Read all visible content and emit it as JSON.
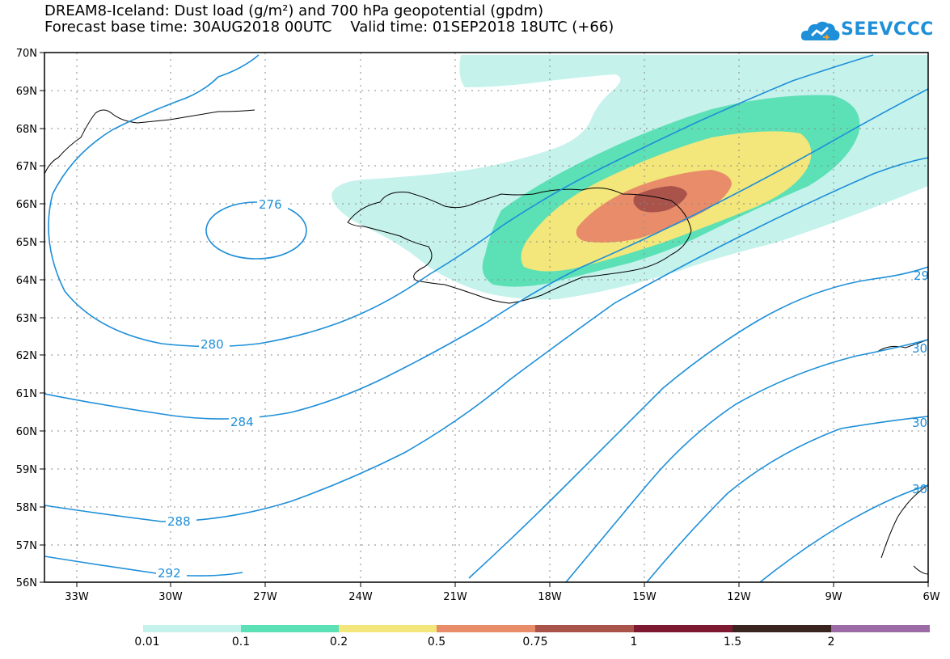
{
  "title": {
    "line1": "DREAM8-Iceland: Dust load (g/m²) and 700 hPa geopotential (gpdm)",
    "line2": "Forecast base time: 30AUG2018 00UTC    Valid time: 01SEP2018 18UTC (+66)"
  },
  "logo": {
    "text": "SEEVCCC",
    "icon": "cloud-icon"
  },
  "map": {
    "lat_labels": [
      "70N",
      "69N",
      "68N",
      "67N",
      "66N",
      "65N",
      "64N",
      "63N",
      "62N",
      "61N",
      "60N",
      "59N",
      "58N",
      "57N",
      "56N"
    ],
    "lon_labels": [
      "33W",
      "30W",
      "27W",
      "24W",
      "21W",
      "18W",
      "15W",
      "12W",
      "9W",
      "6W"
    ],
    "contour_labels": [
      "276",
      "280",
      "284",
      "288",
      "292",
      "29",
      "30",
      "30",
      "30"
    ],
    "contour_color": "#1e8fd8"
  },
  "legend": {
    "labels": [
      "0.01",
      "0.1",
      "0.2",
      "0.5",
      "0.75",
      "1",
      "1.5",
      "2"
    ],
    "colors": [
      "#c6f2ec",
      "#5ce0b6",
      "#f3e67a",
      "#e98c6a",
      "#a9534b",
      "#7d1a32",
      "#3a2420",
      "#9c6aa5"
    ]
  }
}
